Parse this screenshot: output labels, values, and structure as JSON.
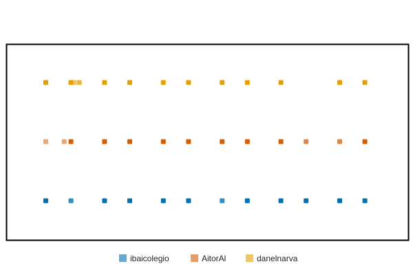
{
  "chart_data": {
    "type": "scatter",
    "title": "",
    "xlabel": "",
    "ylabel": "",
    "axes_visible": false,
    "grid": false,
    "legend_position": "bottom",
    "series": [
      {
        "name": "ibaicolegio",
        "color": "#0072b2",
        "points": [
          {
            "x": 1,
            "opacity": 1.0
          },
          {
            "x": 4,
            "opacity": 0.8
          },
          {
            "x": 8,
            "opacity": 1.0
          },
          {
            "x": 11,
            "opacity": 1.0
          },
          {
            "x": 15,
            "opacity": 1.0
          },
          {
            "x": 18,
            "opacity": 1.0
          },
          {
            "x": 22,
            "opacity": 0.8
          },
          {
            "x": 25,
            "opacity": 1.0
          },
          {
            "x": 29,
            "opacity": 1.0
          },
          {
            "x": 32,
            "opacity": 1.0
          },
          {
            "x": 36,
            "opacity": 1.0
          },
          {
            "x": 39,
            "opacity": 1.0
          }
        ]
      },
      {
        "name": "AitorAl",
        "color": "#d55e00",
        "points": [
          {
            "x": 1,
            "opacity": 0.55
          },
          {
            "x": 3.2,
            "opacity": 0.55
          },
          {
            "x": 4,
            "opacity": 1.0
          },
          {
            "x": 8,
            "opacity": 1.0
          },
          {
            "x": 11,
            "opacity": 1.0
          },
          {
            "x": 15,
            "opacity": 1.0
          },
          {
            "x": 18,
            "opacity": 1.0
          },
          {
            "x": 22,
            "opacity": 1.0
          },
          {
            "x": 25,
            "opacity": 1.0
          },
          {
            "x": 29,
            "opacity": 1.0
          },
          {
            "x": 32,
            "opacity": 0.75
          },
          {
            "x": 36,
            "opacity": 0.75
          },
          {
            "x": 39,
            "opacity": 1.0
          }
        ]
      },
      {
        "name": "danelnarva",
        "color": "#e69f00",
        "points": [
          {
            "x": 1,
            "opacity": 1.0
          },
          {
            "x": 4,
            "opacity": 1.0
          },
          {
            "x": 4.4,
            "opacity": 0.6
          },
          {
            "x": 5,
            "opacity": 0.75
          },
          {
            "x": 8,
            "opacity": 1.0
          },
          {
            "x": 11,
            "opacity": 1.0
          },
          {
            "x": 15,
            "opacity": 1.0
          },
          {
            "x": 18,
            "opacity": 1.0
          },
          {
            "x": 22,
            "opacity": 1.0
          },
          {
            "x": 25,
            "opacity": 1.0
          },
          {
            "x": 29,
            "opacity": 1.0
          },
          {
            "x": 36,
            "opacity": 1.0
          },
          {
            "x": 39,
            "opacity": 1.0
          }
        ]
      }
    ]
  }
}
